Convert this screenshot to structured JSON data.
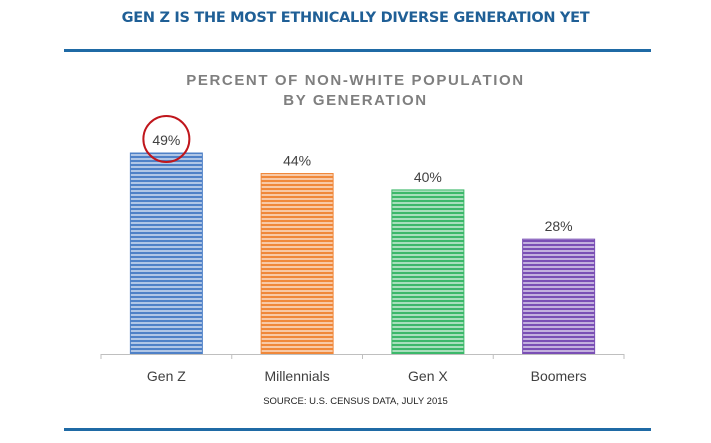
{
  "header": {
    "headline": "GEN Z IS THE MOST ETHNICALLY DIVERSE GENERATION YET"
  },
  "footer": {
    "source": "SOURCE: U.S. CENSUS DATA, JULY 2015"
  },
  "colors": {
    "headline": "#1f5f96",
    "rule": "#1f6aa5",
    "highlight_circle": "#c0161c"
  },
  "chart_data": {
    "type": "bar",
    "title": "PERCENT OF NON-WHITE POPULATION",
    "title_line2": "BY GENERATION",
    "categories": [
      "Gen Z",
      "Millennials",
      "Gen X",
      "Boomers"
    ],
    "values": [
      49,
      44,
      40,
      28
    ],
    "data_labels": [
      "49%",
      "44%",
      "40%",
      "28%"
    ],
    "units": "%",
    "xlabel": "",
    "ylabel": "",
    "ylim": [
      0,
      49
    ],
    "grid": false,
    "legend": "none",
    "bar_colors": [
      "#4f81c7",
      "#f0883a",
      "#3cb86a",
      "#7a4fb5"
    ],
    "highlighted_category": "Gen Z"
  }
}
